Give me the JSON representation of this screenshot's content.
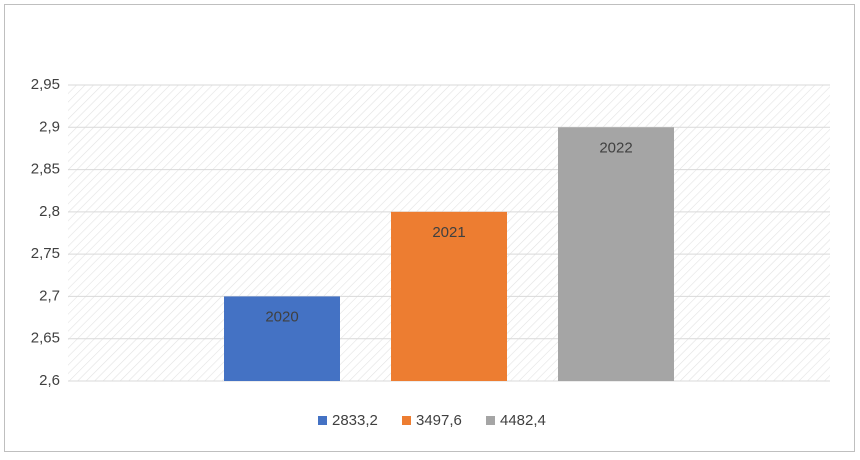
{
  "chart_data": {
    "type": "bar",
    "series": [
      {
        "name": "2833,2",
        "color": "#4472c4",
        "values": [
          2.7
        ],
        "label": "2020"
      },
      {
        "name": "3497,6",
        "color": "#ed7d31",
        "values": [
          2.8
        ],
        "label": "2021"
      },
      {
        "name": "4482,4",
        "color": "#a5a5a5",
        "values": [
          2.9
        ],
        "label": "2022"
      }
    ],
    "ylim": [
      2.6,
      2.95
    ],
    "yticks": [
      {
        "value": 2.6,
        "label": "2,6"
      },
      {
        "value": 2.65,
        "label": "2,65"
      },
      {
        "value": 2.7,
        "label": "2,7"
      },
      {
        "value": 2.75,
        "label": "2,75"
      },
      {
        "value": 2.8,
        "label": "2,8"
      },
      {
        "value": 2.85,
        "label": "2,85"
      },
      {
        "value": 2.9,
        "label": "2,9"
      },
      {
        "value": 2.95,
        "label": "2,95"
      }
    ],
    "grid": true,
    "legend": "bottom"
  }
}
